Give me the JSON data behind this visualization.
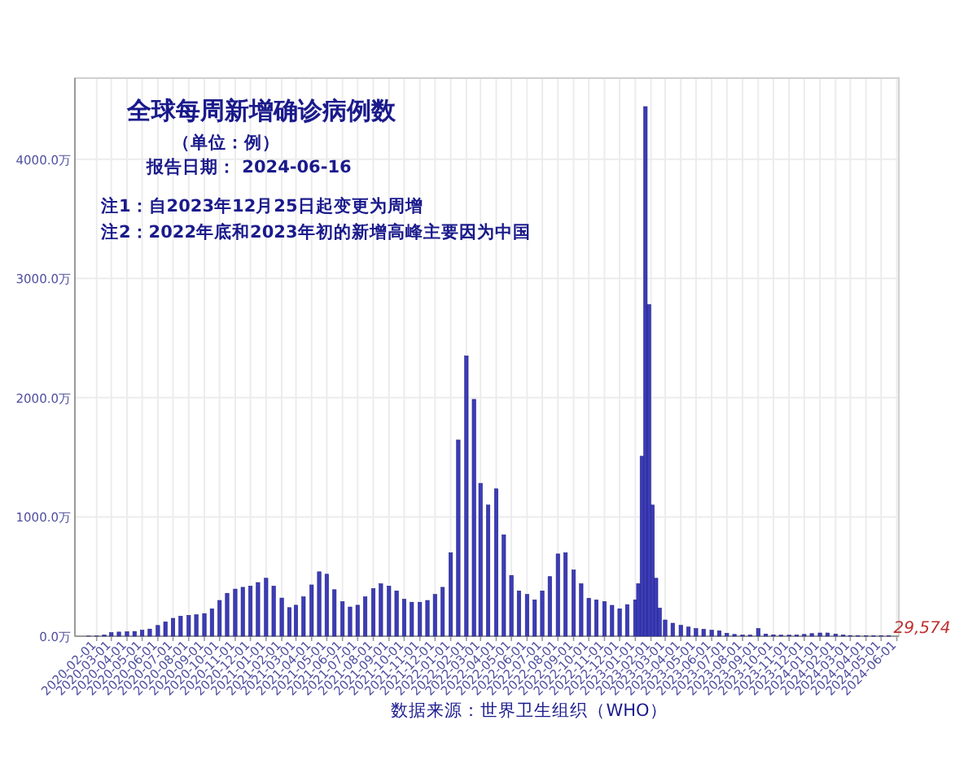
{
  "chart_data": {
    "type": "bar",
    "title": "全球每周新增确诊病例数",
    "subtitle": "（单位：例）",
    "annotations": [
      "报告日期： 2024-06-16",
      "注1：自2023年12月25日起变更为周增",
      "注2：2022年底和2023年初的新增高峰主要因为中国",
      "数据来源：世界卫生组织（WHO）",
      {
        "text": "29,574",
        "x": "2024-05-16",
        "y": 2.9574
      }
    ],
    "color": "#3c3cb8",
    "grid": true,
    "xlim": [
      "2019-12-20",
      "2024-06-05"
    ],
    "ylim": [
      0,
      4680
    ],
    "xticks": [
      "2020-02-01",
      "2020-03-01",
      "2020-04-01",
      "2020-05-01",
      "2020-06-01",
      "2020-07-01",
      "2020-08-01",
      "2020-09-01",
      "2020-10-01",
      "2020-11-01",
      "2020-12-01",
      "2021-01-01",
      "2021-02-01",
      "2021-03-01",
      "2021-04-01",
      "2021-05-01",
      "2021-06-01",
      "2021-07-01",
      "2021-08-01",
      "2021-09-01",
      "2021-10-01",
      "2021-11-01",
      "2021-12-01",
      "2022-01-01",
      "2022-02-01",
      "2022-03-01",
      "2022-04-01",
      "2022-05-01",
      "2022-06-01",
      "2022-07-01",
      "2022-08-01",
      "2022-09-01",
      "2022-10-01",
      "2022-11-01",
      "2022-12-01",
      "2023-01-01",
      "2023-02-01",
      "2023-03-01",
      "2023-04-01",
      "2023-05-01",
      "2023-06-01",
      "2023-07-01",
      "2023-08-01",
      "2023-09-01",
      "2023-10-01",
      "2023-11-01",
      "2023-12-01",
      "2024-01-01",
      "2024-02-01",
      "2024-03-01",
      "2024-04-01",
      "2024-05-01",
      "2024-06-01"
    ],
    "yticks": [
      {
        "value": 0,
        "label": "0.0万"
      },
      {
        "value": 1000,
        "label": "1000.0万"
      },
      {
        "value": 2000,
        "label": "2000.0万"
      },
      {
        "value": 3000,
        "label": "3000.0万"
      },
      {
        "value": 4000,
        "label": "4000.0万"
      }
    ],
    "x": [
      "2020-01-16",
      "2020-02-01",
      "2020-02-16",
      "2020-03-01",
      "2020-03-16",
      "2020-04-01",
      "2020-04-16",
      "2020-05-01",
      "2020-05-16",
      "2020-06-01",
      "2020-06-16",
      "2020-07-01",
      "2020-07-16",
      "2020-08-01",
      "2020-08-16",
      "2020-09-01",
      "2020-09-16",
      "2020-10-01",
      "2020-10-16",
      "2020-11-01",
      "2020-11-16",
      "2020-12-01",
      "2020-12-16",
      "2021-01-01",
      "2021-01-16",
      "2021-02-01",
      "2021-02-16",
      "2021-03-01",
      "2021-03-16",
      "2021-04-01",
      "2021-04-16",
      "2021-05-01",
      "2021-05-16",
      "2021-06-01",
      "2021-06-16",
      "2021-07-01",
      "2021-07-16",
      "2021-08-01",
      "2021-08-16",
      "2021-09-01",
      "2021-09-16",
      "2021-10-01",
      "2021-10-16",
      "2021-11-01",
      "2021-11-16",
      "2021-12-01",
      "2021-12-16",
      "2022-01-01",
      "2022-01-16",
      "2022-02-01",
      "2022-02-16",
      "2022-03-01",
      "2022-03-16",
      "2022-04-01",
      "2022-04-16",
      "2022-05-01",
      "2022-05-16",
      "2022-06-01",
      "2022-06-16",
      "2022-07-01",
      "2022-07-16",
      "2022-08-01",
      "2022-08-16",
      "2022-09-01",
      "2022-09-16",
      "2022-10-01",
      "2022-10-16",
      "2022-11-01",
      "2022-11-16",
      "2022-12-01",
      "2022-12-16",
      "2023-01-01",
      "2023-01-07",
      "2023-01-14",
      "2023-01-21",
      "2023-01-28",
      "2023-02-04",
      "2023-02-11",
      "2023-02-18",
      "2023-03-01",
      "2023-03-16",
      "2023-04-01",
      "2023-04-16",
      "2023-05-01",
      "2023-05-16",
      "2023-06-01",
      "2023-06-16",
      "2023-07-01",
      "2023-07-16",
      "2023-08-01",
      "2023-08-16",
      "2023-09-01",
      "2023-09-16",
      "2023-10-01",
      "2023-10-16",
      "2023-11-01",
      "2023-11-16",
      "2023-12-01",
      "2023-12-16",
      "2024-01-01",
      "2024-01-16",
      "2024-02-01",
      "2024-02-16",
      "2024-03-01",
      "2024-03-16",
      "2024-04-01",
      "2024-04-16",
      "2024-05-01",
      "2024-05-16"
    ],
    "values": [
      1,
      2,
      10,
      30,
      35,
      38,
      40,
      50,
      60,
      90,
      120,
      150,
      168,
      175,
      180,
      190,
      230,
      300,
      360,
      395,
      410,
      420,
      450,
      486,
      420,
      320,
      240,
      260,
      330,
      430,
      540,
      520,
      390,
      290,
      245,
      260,
      330,
      400,
      440,
      420,
      380,
      310,
      285,
      285,
      300,
      350,
      410,
      700,
      1645,
      2350,
      1986,
      1282,
      1100,
      1236,
      850,
      510,
      380,
      350,
      305,
      380,
      500,
      690,
      700,
      555,
      440,
      318,
      305,
      291,
      259,
      230,
      265,
      305,
      441,
      1509,
      4441,
      2782,
      1100,
      486,
      236,
      136,
      109,
      91,
      77,
      64,
      58,
      50,
      45,
      25,
      15,
      10,
      10,
      64,
      18,
      12,
      9,
      9,
      10,
      15,
      22,
      27,
      27,
      18,
      10,
      6,
      5,
      4,
      3.5,
      3.2,
      2.9574
    ]
  }
}
